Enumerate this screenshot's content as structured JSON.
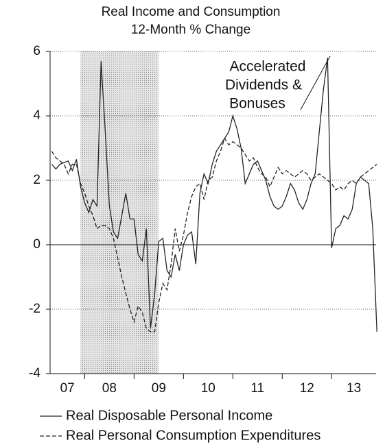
{
  "chart_data": {
    "type": "line",
    "title": [
      "Real Income and Consumption",
      "12-Month % Change"
    ],
    "annotation": [
      "Accelerated",
      "Dividends &",
      "Bonuses"
    ],
    "x": [
      2007.333,
      2007.417,
      2007.5,
      2007.583,
      2007.667,
      2007.75,
      2007.833,
      2007.917,
      2008.0,
      2008.083,
      2008.167,
      2008.25,
      2008.333,
      2008.417,
      2008.5,
      2008.583,
      2008.667,
      2008.75,
      2008.833,
      2008.917,
      2009.0,
      2009.083,
      2009.167,
      2009.25,
      2009.333,
      2009.417,
      2009.5,
      2009.583,
      2009.667,
      2009.75,
      2009.833,
      2009.917,
      2010.0,
      2010.083,
      2010.167,
      2010.25,
      2010.333,
      2010.417,
      2010.5,
      2010.583,
      2010.667,
      2010.75,
      2010.833,
      2010.917,
      2011.0,
      2011.083,
      2011.167,
      2011.25,
      2011.333,
      2011.417,
      2011.5,
      2011.583,
      2011.667,
      2011.75,
      2011.833,
      2011.917,
      2012.0,
      2012.083,
      2012.167,
      2012.25,
      2012.333,
      2012.417,
      2012.5,
      2012.583,
      2012.667,
      2012.75,
      2012.833,
      2012.917,
      2013.0,
      2013.083,
      2013.167,
      2013.25,
      2013.333,
      2013.417,
      2013.5,
      2013.583,
      2013.667,
      2013.75,
      2013.833,
      2013.917
    ],
    "series": [
      {
        "name": "Real Disposable Personal Income",
        "color": "#222222",
        "dash": "solid",
        "values": [
          2.5,
          2.35,
          2.5,
          2.55,
          2.6,
          2.3,
          2.65,
          1.8,
          1.3,
          1.0,
          1.4,
          1.2,
          5.7,
          3.5,
          1.2,
          0.4,
          0.2,
          0.9,
          1.6,
          0.8,
          0.8,
          -0.3,
          -0.5,
          0.5,
          -2.6,
          -1.5,
          0.1,
          0.2,
          -0.8,
          -1.0,
          -0.3,
          -0.8,
          0.0,
          0.3,
          0.4,
          -0.6,
          1.6,
          2.2,
          1.9,
          2.5,
          2.9,
          3.1,
          3.3,
          3.5,
          4.0,
          3.6,
          3.0,
          1.9,
          2.2,
          2.5,
          2.6,
          2.3,
          2.0,
          1.5,
          1.2,
          1.1,
          1.2,
          1.5,
          1.9,
          1.7,
          1.3,
          1.1,
          1.4,
          1.9,
          2.2,
          3.5,
          4.8,
          5.8,
          -0.1,
          0.5,
          0.6,
          0.9,
          0.8,
          1.1,
          1.9,
          2.1,
          2.0,
          1.9,
          0.5,
          -2.7
        ]
      },
      {
        "name": "Real Personal Consumption Expenditures",
        "color": "#222222",
        "dash": "dashed",
        "values": [
          2.9,
          2.7,
          2.6,
          2.5,
          2.2,
          2.5,
          2.5,
          1.9,
          1.6,
          1.2,
          0.9,
          0.5,
          0.6,
          0.6,
          0.5,
          0.2,
          -0.4,
          -1.0,
          -1.5,
          -2.0,
          -2.4,
          -1.9,
          -2.1,
          -2.6,
          -2.7,
          -2.7,
          -1.8,
          -1.2,
          -1.4,
          -0.6,
          0.5,
          -0.2,
          0.3,
          1.0,
          1.5,
          1.8,
          1.9,
          1.4,
          2.0,
          2.1,
          2.6,
          2.9,
          3.3,
          3.1,
          3.2,
          3.1,
          3.0,
          2.8,
          2.6,
          2.7,
          2.4,
          2.2,
          2.1,
          1.8,
          2.1,
          2.4,
          2.2,
          2.3,
          2.2,
          2.1,
          2.2,
          2.3,
          2.2,
          2.0,
          2.1,
          2.2,
          2.1,
          2.0,
          1.9,
          1.7,
          1.8,
          1.7,
          1.9,
          2.0,
          1.9,
          2.1,
          2.2,
          2.3,
          2.4,
          2.5
        ]
      }
    ],
    "shaded_range": [
      2007.917,
      2009.5
    ],
    "xlim": [
      2007.3,
      2013.9
    ],
    "xticks": [
      {
        "value": 2007.5,
        "label": "07"
      },
      {
        "value": 2008.5,
        "label": "08"
      },
      {
        "value": 2009.5,
        "label": "09"
      },
      {
        "value": 2010.5,
        "label": "10"
      },
      {
        "value": 2011.5,
        "label": "11"
      },
      {
        "value": 2012.5,
        "label": "12"
      },
      {
        "value": 2013.5,
        "label": "13"
      }
    ],
    "ylim": [
      -4,
      6
    ],
    "yticks": [
      -4,
      -2,
      0,
      2,
      4,
      6
    ],
    "grid": true
  }
}
